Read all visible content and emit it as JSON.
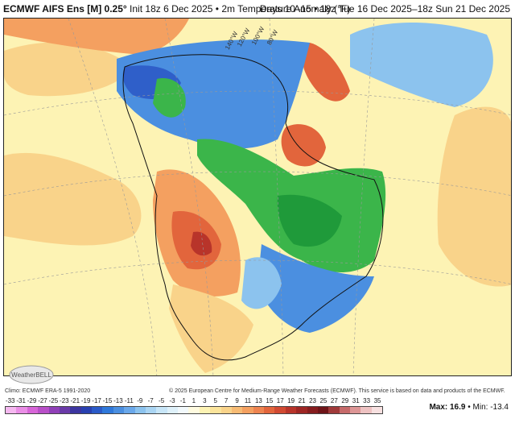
{
  "header": {
    "model": "ECMWF AIFS Ens [M] 0.25°",
    "init": "Init 18z 6 Dec 2025 • 2m Temperature Anomaly (°F)",
    "valid": "Days 10–15 • 18z Tue 16 Dec 2025–18z Sun 21 Dec 2025"
  },
  "map": {
    "longitude_labels": [
      "140°W",
      "120°W",
      "100°W",
      "80°W"
    ],
    "colors": {
      "warm_light": "#fdf3b4",
      "warm_mid": "#f9d38a",
      "warm_orange": "#f4a060",
      "warm_red": "#e2653c",
      "warm_dark": "#b8342a",
      "cool_light": "#cfe8f7",
      "cool_mid": "#8cc3ee",
      "cool_blue": "#4b8fe0",
      "cool_dark": "#2f5fc9",
      "green": "#3bb54a",
      "green_dark": "#1f9a3a"
    }
  },
  "footer": {
    "climo": "Climo: ECMWF ERA-5 1991-2020",
    "credit": "© 2025 European Centre for Medium-Range Weather Forecasts (ECMWF). This service is based on data and products of the ECMWF.",
    "logo_text": "WeatherBELL",
    "max_label": "Max: 16.9",
    "min_label": "Min: -13.4"
  },
  "legend": {
    "ticks": [
      "-33",
      "-31",
      "-29",
      "-27",
      "-25",
      "-23",
      "-21",
      "-19",
      "-17",
      "-15",
      "-13",
      "-11",
      "-9",
      "-7",
      "-5",
      "-3",
      "-1",
      "1",
      "3",
      "5",
      "7",
      "9",
      "11",
      "13",
      "15",
      "17",
      "19",
      "21",
      "23",
      "25",
      "27",
      "29",
      "31",
      "33",
      "35"
    ],
    "colors": [
      "#f5b8f0",
      "#ea8ee6",
      "#d765d8",
      "#b84fc8",
      "#9040b8",
      "#6a3aa8",
      "#3c35a0",
      "#2840b0",
      "#2a5ac8",
      "#2f78da",
      "#4b8fe0",
      "#6aa8ea",
      "#8cc3ee",
      "#aad5f3",
      "#c8e6f8",
      "#dff1fa",
      "#f2f9fc",
      "#fffbe0",
      "#fdf3b4",
      "#fbe49b",
      "#f9d38a",
      "#f7bb74",
      "#f4a060",
      "#ee8450",
      "#e2653c",
      "#d14a32",
      "#b8342a",
      "#9e2624",
      "#861c1e",
      "#6e1418",
      "#a03a3a",
      "#c66a6a",
      "#dd9696",
      "#eec2c2",
      "#f7e0e0"
    ]
  }
}
